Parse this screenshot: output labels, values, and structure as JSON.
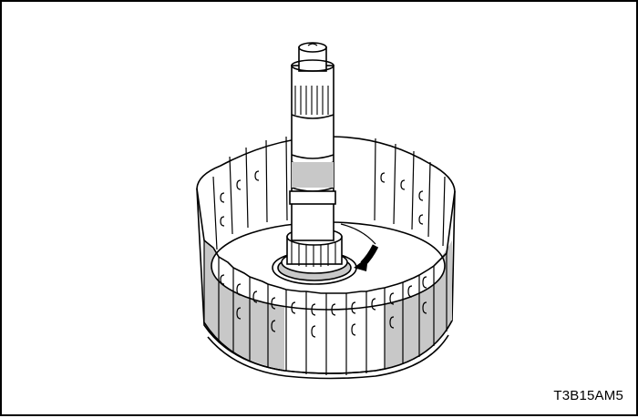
{
  "figure": {
    "code": "T3B15AM5",
    "line_color": "#000000",
    "fill_color": "#ffffff",
    "shade_color": "#c8c8c8",
    "arrow_icon": "curved-arrow-icon"
  }
}
